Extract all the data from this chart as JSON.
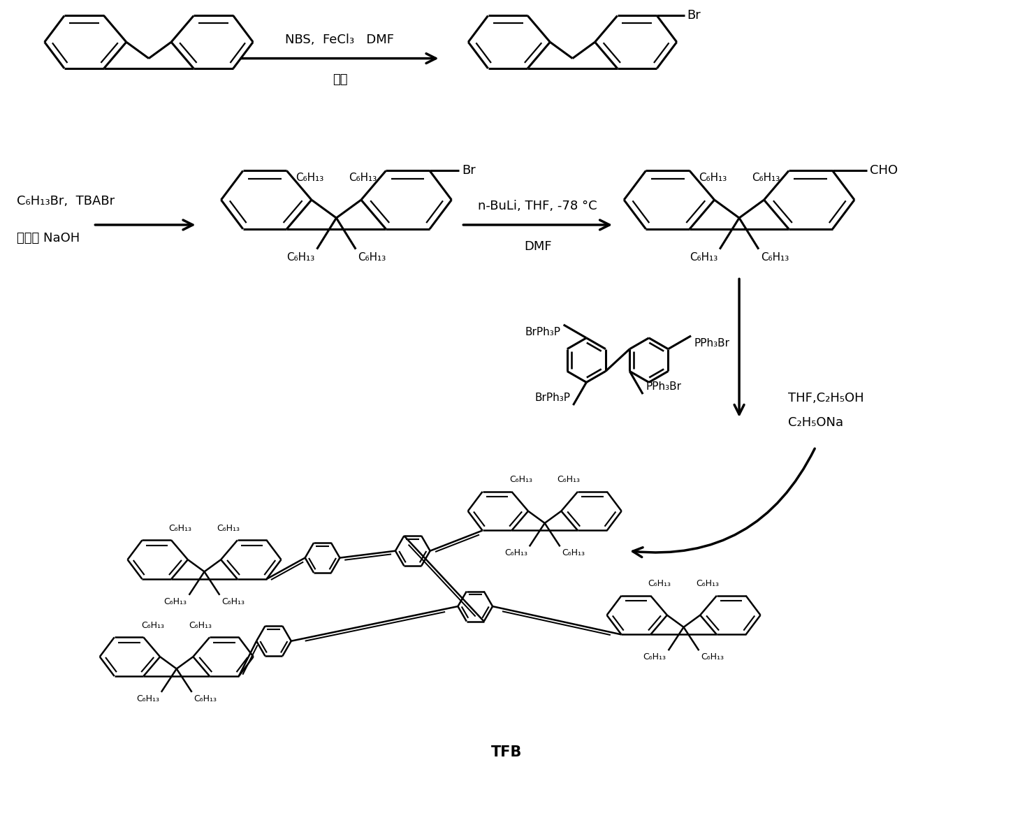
{
  "background_color": "#ffffff",
  "figsize": [
    14.5,
    11.94
  ],
  "dpi": 100,
  "label_TFB": "TFB",
  "reaction1_conditions_top": "NBS,  FeCl₃   DMF",
  "reaction1_conditions_bot": "常温",
  "reaction2_conditions_left1": "C₆H₁₃Br,  TBABr",
  "reaction2_conditions_left2": "甲苯， NaOH",
  "reaction2_conditions_right1": "n-BuLi, THF, -78 °C",
  "reaction2_conditions_right2": "DMF",
  "reaction3_conditions1": "THF,C₂H₅OH",
  "reaction3_conditions2": "C₂H₅ONa",
  "C6H13": "C₆H₁₃"
}
